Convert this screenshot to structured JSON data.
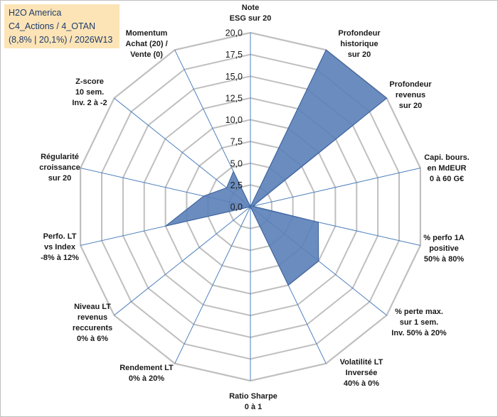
{
  "info": {
    "line1": "H2O America",
    "line2": "C4_Actions / 4_OTAN",
    "line3": "(8,8% | 20,1%) / 2026W13"
  },
  "colors": {
    "fill": "#5b7fb8",
    "stroke": "#3a5f99",
    "grid": "#bfbfbf",
    "spoke": "#4f81bd"
  },
  "chart_data": {
    "type": "radar",
    "axis_range": [
      0,
      20
    ],
    "ticks": [
      "0,0",
      "2,5",
      "5,0",
      "7,5",
      "10,0",
      "12,5",
      "15,0",
      "17,5",
      "20,0"
    ],
    "grid": true,
    "axes": [
      {
        "label": [
          "Note",
          "ESG sur 20"
        ],
        "value": 0
      },
      {
        "label": [
          "Profondeur",
          "historique",
          "sur 20"
        ],
        "value": 20
      },
      {
        "label": [
          "Profondeur",
          "revenus",
          "sur 20"
        ],
        "value": 20
      },
      {
        "label": [
          "Capi. bours.",
          "en MdEUR",
          "0 à 60 G€"
        ],
        "value": 0.3
      },
      {
        "label": [
          "% perfo 1A",
          "positive",
          "50% à 80%"
        ],
        "value": 8
      },
      {
        "label": [
          "% perte max.",
          "sur 1 sem.",
          "Inv. 50% à 20%"
        ],
        "value": 10
      },
      {
        "label": [
          "Volatilité LT",
          "Inversée",
          "40% à 0%"
        ],
        "value": 10
      },
      {
        "label": [
          "Ratio Sharpe",
          "0 à 1"
        ],
        "value": 0
      },
      {
        "label": [
          "Rendement LT",
          "0% à 20%"
        ],
        "value": 0
      },
      {
        "label": [
          "Niveau LT",
          "revenus",
          "reccurents",
          "0% à 6%"
        ],
        "value": 0
      },
      {
        "label": [
          "Perfo. LT",
          "vs Index",
          "-8% à 12%"
        ],
        "value": 10
      },
      {
        "label": [
          "Régularité",
          "croissance",
          "sur 20"
        ],
        "value": 5.5
      },
      {
        "label": [
          "Z-score",
          "10 sem.",
          "Inv. 2 à -2"
        ],
        "value": 3.5
      },
      {
        "label": [
          "Momentum",
          "Achat (20) /",
          "Vente (0)"
        ],
        "value": 4.5
      }
    ]
  }
}
